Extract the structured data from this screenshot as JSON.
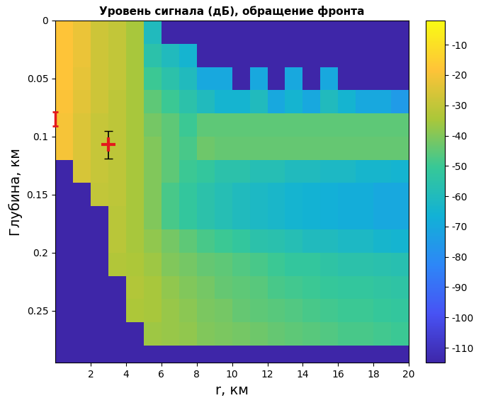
{
  "chart_data": {
    "type": "heatmap",
    "title": "Уровень сигнала (дБ), обращение фронта",
    "x_label": "r, км",
    "y_label": "Глубина, км",
    "x": [
      0.5,
      1.5,
      2.5,
      3.5,
      4.5,
      5.5,
      6.5,
      7.5,
      8.5,
      9.5,
      10.5,
      11.5,
      12.5,
      13.5,
      14.5,
      15.5,
      16.5,
      17.5,
      18.5,
      19.5
    ],
    "y": [
      0.01,
      0.03,
      0.05,
      0.07,
      0.09,
      0.11,
      0.13,
      0.15,
      0.17,
      0.19,
      0.21,
      0.23,
      0.25,
      0.27,
      0.29
    ],
    "cells": [
      [
        -18,
        -22,
        -28,
        -30,
        -35,
        -60,
        -115,
        -115,
        -115,
        -115,
        -115,
        -115,
        -115,
        -115,
        -115,
        -115,
        -115,
        -115,
        -115,
        -115
      ],
      [
        -18,
        -22,
        -28,
        -30,
        -35,
        -55,
        -60,
        -65,
        -115,
        -115,
        -115,
        -115,
        -115,
        -115,
        -115,
        -115,
        -115,
        -115,
        -115,
        -115
      ],
      [
        -18,
        -23,
        -28,
        -30,
        -35,
        -50,
        -55,
        -60,
        -70,
        -70,
        -115,
        -70,
        -115,
        -70,
        -115,
        -70,
        -115,
        -115,
        -115,
        -115
      ],
      [
        -19,
        -24,
        -28,
        -31,
        -35,
        -45,
        -50,
        -55,
        -60,
        -65,
        -65,
        -60,
        -70,
        -65,
        -70,
        -60,
        -65,
        -70,
        -70,
        -75
      ],
      [
        -20,
        -25,
        -29,
        -31,
        -35,
        -42,
        -45,
        -50,
        -45,
        -45,
        -45,
        -45,
        -45,
        -45,
        -45,
        -45,
        -45,
        -45,
        -45,
        -45
      ],
      [
        -20,
        -25,
        -29,
        -31,
        -35,
        -40,
        -45,
        -48,
        -43,
        -44,
        -44,
        -44,
        -44,
        -44,
        -44,
        -44,
        -44,
        -44,
        -44,
        -44
      ],
      [
        -115,
        -26,
        -29,
        -31,
        -35,
        -40,
        -45,
        -50,
        -52,
        -55,
        -55,
        -58,
        -58,
        -60,
        -60,
        -62,
        -62,
        -64,
        -64,
        -65
      ],
      [
        -115,
        -115,
        -30,
        -31,
        -35,
        -40,
        -48,
        -52,
        -55,
        -58,
        -60,
        -62,
        -63,
        -65,
        -66,
        -67,
        -68,
        -68,
        -70,
        -70
      ],
      [
        -115,
        -115,
        -115,
        -32,
        -35,
        -40,
        -48,
        -52,
        -55,
        -58,
        -60,
        -62,
        -63,
        -65,
        -66,
        -67,
        -68,
        -68,
        -70,
        -70
      ],
      [
        -115,
        -115,
        -115,
        -32,
        -35,
        -38,
        -42,
        -45,
        -48,
        -50,
        -52,
        -55,
        -56,
        -58,
        -60,
        -60,
        -62,
        -62,
        -64,
        -65
      ],
      [
        -115,
        -115,
        -115,
        -33,
        -34,
        -36,
        -40,
        -42,
        -44,
        -45,
        -47,
        -48,
        -50,
        -52,
        -52,
        -54,
        -55,
        -55,
        -56,
        -57
      ],
      [
        -115,
        -115,
        -115,
        -115,
        -33,
        -35,
        -38,
        -40,
        -42,
        -44,
        -45,
        -46,
        -48,
        -49,
        -50,
        -51,
        -52,
        -52,
        -53,
        -54
      ],
      [
        -115,
        -115,
        -115,
        -115,
        -34,
        -35,
        -37,
        -39,
        -41,
        -42,
        -44,
        -45,
        -46,
        -47,
        -48,
        -49,
        -50,
        -50,
        -51,
        -52
      ],
      [
        -115,
        -115,
        -115,
        -115,
        -115,
        -36,
        -37,
        -38,
        -40,
        -41,
        -42,
        -43,
        -44,
        -45,
        -46,
        -47,
        -48,
        -48,
        -49,
        -50
      ],
      [
        -115,
        -115,
        -115,
        -115,
        -115,
        -115,
        -115,
        -115,
        -115,
        -115,
        -115,
        -115,
        -115,
        -115,
        -115,
        -115,
        -115,
        -115,
        -115,
        -115
      ]
    ],
    "xlim": [
      0,
      20
    ],
    "xticks": [
      2,
      4,
      6,
      8,
      10,
      12,
      14,
      16,
      18,
      20
    ],
    "ylim": [
      0.295,
      0
    ],
    "yticks": [
      0,
      0.05,
      0.1,
      0.15,
      0.2,
      0.25
    ],
    "colorbar_range": [
      -115,
      -2
    ],
    "colorbar_ticks": [
      -10,
      -20,
      -30,
      -40,
      -50,
      -60,
      -70,
      -80,
      -90,
      -100,
      -110
    ],
    "points": [
      {
        "x": 3,
        "y": 0.107,
        "yerr": 0.012,
        "color": "#e41a1c",
        "marker": "plus"
      },
      {
        "x": 0,
        "y": 0.085,
        "yerr": 0.006,
        "color": "#e41a1c",
        "marker": "none"
      }
    ]
  }
}
